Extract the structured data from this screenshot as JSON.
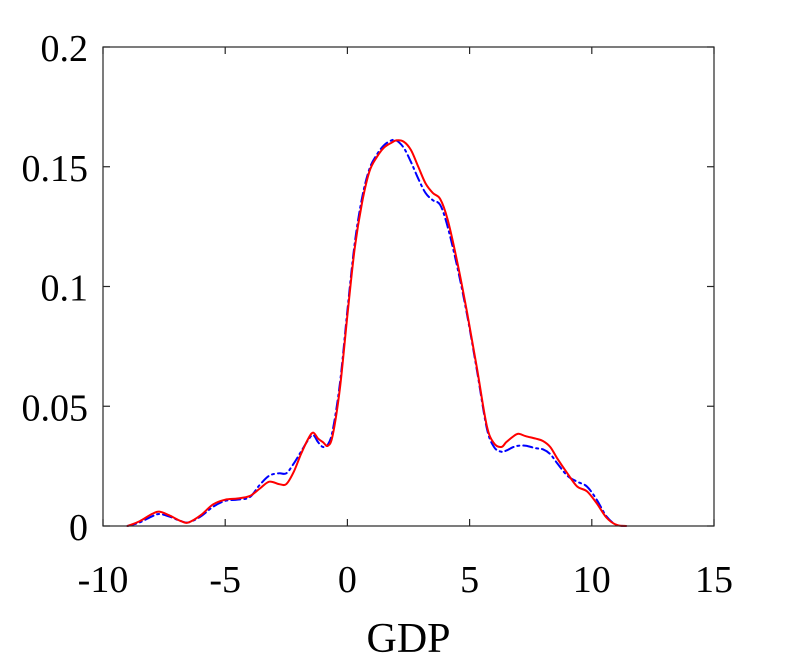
{
  "chart_data": {
    "type": "line",
    "title": "",
    "xlabel": "GDP",
    "ylabel": "",
    "xlim": [
      -10,
      15
    ],
    "ylim": [
      0,
      0.2
    ],
    "xticks": [
      -10,
      -5,
      0,
      5,
      10,
      15
    ],
    "xtick_labels": [
      "-10",
      "-5",
      "0",
      "5",
      "10",
      "15"
    ],
    "yticks": [
      0,
      0.05,
      0.1,
      0.15,
      0.2
    ],
    "ytick_labels": [
      "0",
      "0.05",
      "0.1",
      "0.15",
      "0.2"
    ],
    "grid": false,
    "legend": "none",
    "series": [
      {
        "color": "#0000ff",
        "style": "dash-dot",
        "x": [
          -9.0,
          -8.5,
          -8.0,
          -7.7,
          -7.3,
          -6.8,
          -6.5,
          -6.0,
          -5.5,
          -5.0,
          -4.5,
          -4.0,
          -3.6,
          -3.2,
          -2.8,
          -2.5,
          -2.2,
          -1.9,
          -1.6,
          -1.4,
          -1.2,
          -1.0,
          -0.8,
          -0.6,
          -0.3,
          0.0,
          0.3,
          0.6,
          0.9,
          1.2,
          1.5,
          1.8,
          2.0,
          2.3,
          2.6,
          2.9,
          3.2,
          3.5,
          3.8,
          4.1,
          4.5,
          4.9,
          5.3,
          5.7,
          6.0,
          6.3,
          6.5,
          6.8,
          7.0,
          7.3,
          7.7,
          8.0,
          8.3,
          8.6,
          9.0,
          9.4,
          9.8,
          10.2,
          10.6,
          11.0,
          11.4
        ],
        "y": [
          0.0,
          0.0015,
          0.004,
          0.005,
          0.004,
          0.002,
          0.0015,
          0.004,
          0.008,
          0.0105,
          0.011,
          0.012,
          0.017,
          0.021,
          0.022,
          0.022,
          0.026,
          0.031,
          0.036,
          0.038,
          0.035,
          0.033,
          0.034,
          0.04,
          0.06,
          0.09,
          0.118,
          0.137,
          0.149,
          0.155,
          0.159,
          0.161,
          0.161,
          0.158,
          0.152,
          0.145,
          0.139,
          0.136,
          0.134,
          0.125,
          0.108,
          0.088,
          0.065,
          0.041,
          0.033,
          0.031,
          0.0315,
          0.033,
          0.0335,
          0.0335,
          0.0325,
          0.032,
          0.03,
          0.026,
          0.021,
          0.0185,
          0.0165,
          0.011,
          0.004,
          0.0005,
          0.0
        ]
      },
      {
        "color": "#ff0000",
        "style": "solid",
        "x": [
          -9.0,
          -8.5,
          -8.0,
          -7.7,
          -7.3,
          -6.8,
          -6.5,
          -6.0,
          -5.5,
          -5.0,
          -4.5,
          -4.0,
          -3.6,
          -3.2,
          -2.8,
          -2.5,
          -2.2,
          -1.9,
          -1.6,
          -1.4,
          -1.2,
          -1.0,
          -0.8,
          -0.6,
          -0.3,
          0.0,
          0.3,
          0.6,
          0.9,
          1.2,
          1.5,
          1.8,
          2.0,
          2.3,
          2.6,
          2.9,
          3.2,
          3.5,
          3.8,
          4.1,
          4.5,
          4.9,
          5.3,
          5.7,
          6.0,
          6.3,
          6.5,
          6.8,
          7.0,
          7.3,
          7.7,
          8.0,
          8.3,
          8.6,
          9.0,
          9.4,
          9.8,
          10.2,
          10.6,
          11.0,
          11.4
        ],
        "y": [
          0.0,
          0.002,
          0.005,
          0.006,
          0.0045,
          0.002,
          0.0015,
          0.0045,
          0.009,
          0.011,
          0.0115,
          0.0125,
          0.0155,
          0.0185,
          0.0175,
          0.0175,
          0.0225,
          0.03,
          0.0365,
          0.039,
          0.0365,
          0.035,
          0.0335,
          0.038,
          0.058,
          0.088,
          0.116,
          0.135,
          0.148,
          0.154,
          0.158,
          0.16,
          0.161,
          0.1605,
          0.157,
          0.15,
          0.143,
          0.139,
          0.1365,
          0.128,
          0.11,
          0.089,
          0.066,
          0.042,
          0.0345,
          0.033,
          0.035,
          0.0375,
          0.0385,
          0.0375,
          0.0365,
          0.0355,
          0.033,
          0.028,
          0.022,
          0.0165,
          0.0145,
          0.0095,
          0.0035,
          0.0005,
          0.0
        ]
      }
    ]
  }
}
